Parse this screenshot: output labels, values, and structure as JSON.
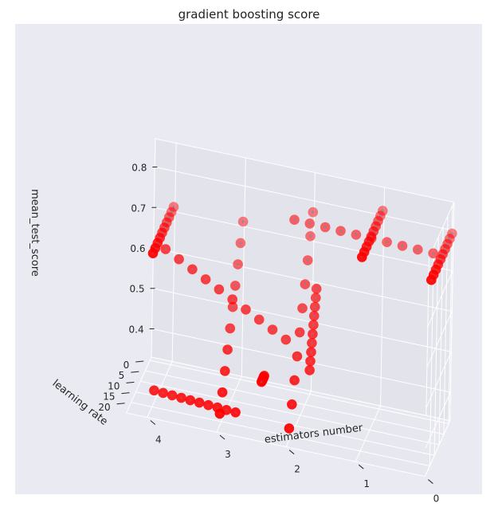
{
  "chart_data": {
    "type": "scatter",
    "title": "gradient boosting score",
    "xlabel": "estimators number",
    "ylabel": "learning rate",
    "zlabel": "mean_test_score",
    "x_ticks": [
      "0",
      "1",
      "2",
      "3",
      "4"
    ],
    "y_ticks": [
      "0",
      "5",
      "10",
      "15",
      "20"
    ],
    "z_ticks": [
      "0.4",
      "0.5",
      "0.6",
      "0.7",
      "0.8"
    ],
    "xlim": [
      0,
      4.3
    ],
    "ylim": [
      -1.5,
      25
    ],
    "zlim": [
      0.33,
      0.87
    ],
    "grid": true,
    "marker_color": "#ff0000",
    "marker_inner_color": "#6d8abb",
    "background_color": "#eaeaf2",
    "clusters": [
      {
        "x": [
          4.0,
          4.0
        ],
        "y": [
          0,
          22
        ],
        "z": [
          0.72,
          0.72
        ]
      },
      {
        "x": [
          3.0,
          3.0
        ],
        "y": [
          0,
          22
        ],
        "z": [
          0.72,
          0.36
        ]
      },
      {
        "x": [
          2.0,
          2.0
        ],
        "y": [
          0,
          22
        ],
        "z": [
          0.78,
          0.36
        ]
      },
      {
        "x": [
          1.0,
          1.0
        ],
        "y": [
          0,
          22
        ],
        "z": [
          0.82,
          0.82
        ]
      },
      {
        "x": [
          0.0,
          0.0
        ],
        "y": [
          0,
          22
        ],
        "z": [
          0.8,
          0.8
        ]
      },
      {
        "x": [
          2.2,
          0.2
        ],
        "y": [
          5,
          5
        ],
        "z": [
          0.78,
          0.77
        ]
      },
      {
        "x": [
          3.95,
          2.2
        ],
        "y": [
          12,
          12
        ],
        "z": [
          0.68,
          0.52
        ]
      },
      {
        "x": [
          1.8,
          1.8
        ],
        "y": [
          10,
          16
        ],
        "z": [
          0.65,
          0.48
        ]
      },
      {
        "x": [
          2.5,
          2.5
        ],
        "y": [
          12,
          15
        ],
        "z": [
          0.42,
          0.42
        ]
      },
      {
        "x": [
          4.0,
          2.8
        ],
        "y": [
          18,
          20
        ],
        "z": [
          0.36,
          0.36
        ]
      }
    ]
  }
}
